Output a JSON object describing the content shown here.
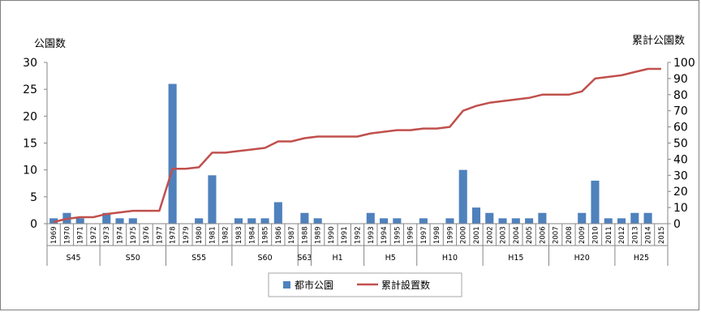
{
  "chart_data": {
    "type": "bar+line",
    "title_left": "公園数",
    "title_right": "累計公園数",
    "categories": [
      "1969",
      "1970",
      "1971",
      "1972",
      "1973",
      "1974",
      "1975",
      "1976",
      "1977",
      "1978",
      "1979",
      "1980",
      "1981",
      "1982",
      "1983",
      "1984",
      "1985",
      "1986",
      "1987",
      "1988",
      "1989",
      "1990",
      "1991",
      "1992",
      "1993",
      "1994",
      "1995",
      "1996",
      "1997",
      "1998",
      "1999",
      "2000",
      "2001",
      "2002",
      "2003",
      "2004",
      "2005",
      "2006",
      "2007",
      "2008",
      "2009",
      "2010",
      "2011",
      "2012",
      "2013",
      "2014",
      "2015"
    ],
    "eras": [
      {
        "label": "S45",
        "start": 0,
        "end": 3
      },
      {
        "label": "S50",
        "start": 4,
        "end": 8
      },
      {
        "label": "S55",
        "start": 9,
        "end": 13
      },
      {
        "label": "S60",
        "start": 14,
        "end": 18
      },
      {
        "label": "S63",
        "start": 19,
        "end": 19
      },
      {
        "label": "H1",
        "start": 20,
        "end": 23
      },
      {
        "label": "H5",
        "start": 24,
        "end": 27
      },
      {
        "label": "H10",
        "start": 28,
        "end": 32
      },
      {
        "label": "H15",
        "start": 33,
        "end": 37
      },
      {
        "label": "H20",
        "start": 38,
        "end": 42
      },
      {
        "label": "H25",
        "start": 43,
        "end": 46
      }
    ],
    "series": [
      {
        "name": "都市公園",
        "type": "bar",
        "axis": "left",
        "color": "#4f81bd",
        "values": [
          1,
          2,
          1,
          0,
          2,
          1,
          1,
          0,
          0,
          26,
          0,
          1,
          9,
          0,
          1,
          1,
          1,
          4,
          0,
          2,
          1,
          0,
          0,
          0,
          2,
          1,
          1,
          0,
          1,
          0,
          1,
          10,
          3,
          2,
          1,
          1,
          1,
          2,
          0,
          0,
          2,
          8,
          1,
          1,
          2,
          2,
          0
        ]
      },
      {
        "name": "累計設置数",
        "type": "line",
        "axis": "right",
        "color": "#c0504d",
        "values": [
          1,
          3,
          4,
          4,
          6,
          7,
          8,
          8,
          8,
          34,
          34,
          35,
          44,
          44,
          45,
          46,
          47,
          51,
          51,
          53,
          54,
          54,
          54,
          54,
          56,
          57,
          58,
          58,
          59,
          59,
          60,
          70,
          73,
          75,
          76,
          77,
          78,
          80,
          80,
          80,
          82,
          90,
          91,
          92,
          94,
          96,
          96
        ]
      }
    ],
    "y_left": {
      "min": 0,
      "max": 30,
      "ticks": [
        0,
        5,
        10,
        15,
        20,
        25,
        30
      ]
    },
    "y_right": {
      "min": 0,
      "max": 100,
      "ticks": [
        0,
        10,
        20,
        30,
        40,
        50,
        60,
        70,
        80,
        90,
        100
      ]
    },
    "grid": false,
    "legend_position": "bottom"
  }
}
